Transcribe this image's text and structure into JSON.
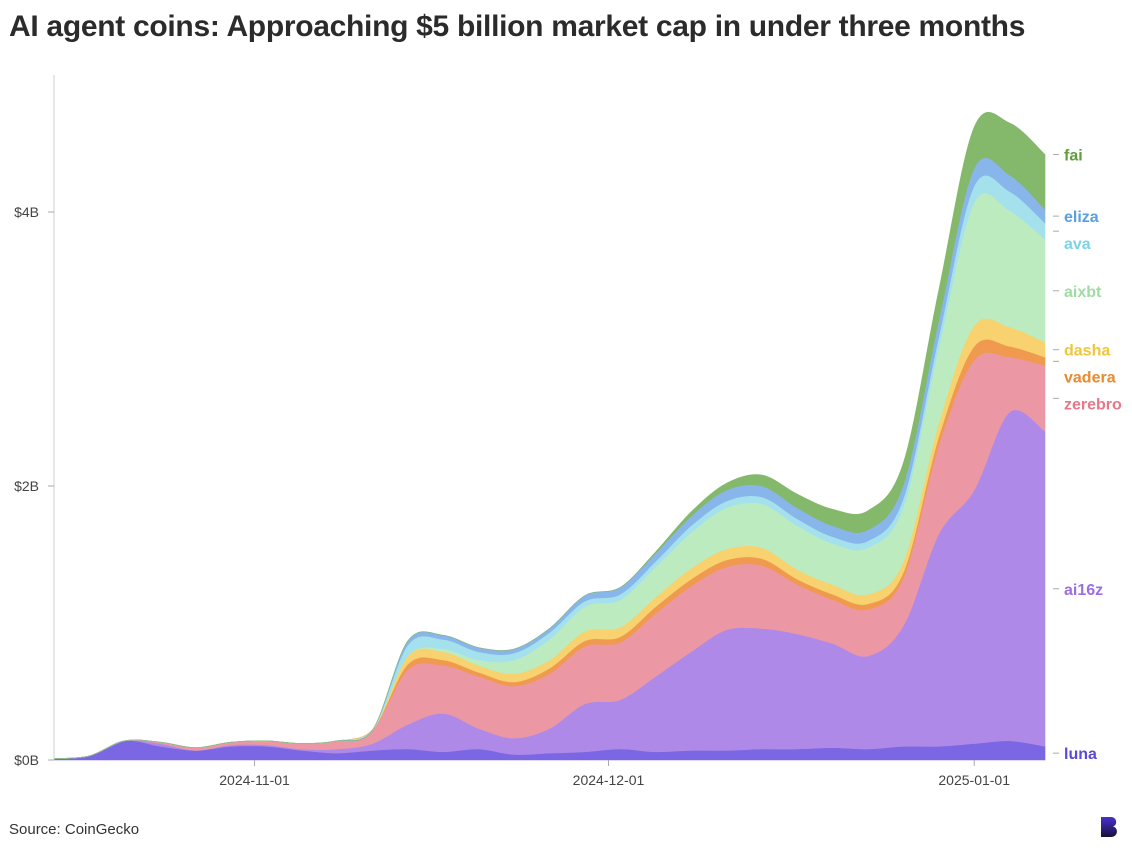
{
  "title": "AI agent coins: Approaching $5 billion market cap in under three months",
  "source": "Source: CoinGecko",
  "logo_icon": "b-logo-icon",
  "chart_data": {
    "type": "area",
    "stacked": true,
    "title": "AI agent coins: Approaching $5 billion market cap in under three months",
    "xlabel": "",
    "ylabel": "",
    "x_range": [
      "2024-10-15",
      "2025-01-07"
    ],
    "ylim": [
      0,
      5
    ],
    "y_unit": "billion USD",
    "y_ticks": [
      {
        "value": 0,
        "label": "$0B"
      },
      {
        "value": 2,
        "label": "$2B"
      },
      {
        "value": 4,
        "label": "$4B"
      }
    ],
    "x_ticks": [
      {
        "date": "2024-11-01",
        "label": "2024-11-01"
      },
      {
        "date": "2024-12-01",
        "label": "2024-12-01"
      },
      {
        "date": "2025-01-01",
        "label": "2025-01-01"
      }
    ],
    "grid": false,
    "legend": "right, inline labels",
    "dates": [
      "2024-10-15",
      "2024-10-18",
      "2024-10-21",
      "2024-10-24",
      "2024-10-27",
      "2024-10-30",
      "2024-11-02",
      "2024-11-05",
      "2024-11-08",
      "2024-11-11",
      "2024-11-14",
      "2024-11-17",
      "2024-11-20",
      "2024-11-23",
      "2024-11-26",
      "2024-11-29",
      "2024-12-02",
      "2024-12-05",
      "2024-12-08",
      "2024-12-11",
      "2024-12-14",
      "2024-12-17",
      "2024-12-20",
      "2024-12-23",
      "2024-12-26",
      "2024-12-29",
      "2025-01-01",
      "2025-01-04",
      "2025-01-07"
    ],
    "series": [
      {
        "name": "luna",
        "color": "#7b66e3",
        "values": [
          0.01,
          0.03,
          0.14,
          0.1,
          0.07,
          0.1,
          0.1,
          0.07,
          0.05,
          0.07,
          0.08,
          0.06,
          0.08,
          0.04,
          0.05,
          0.06,
          0.08,
          0.06,
          0.07,
          0.07,
          0.08,
          0.08,
          0.09,
          0.08,
          0.1,
          0.1,
          0.12,
          0.14,
          0.1
        ]
      },
      {
        "name": "ai16z",
        "color": "#ae89e8",
        "values": [
          0.0,
          0.0,
          0.0,
          0.02,
          0.0,
          0.01,
          0.01,
          0.01,
          0.03,
          0.05,
          0.18,
          0.28,
          0.15,
          0.12,
          0.18,
          0.35,
          0.36,
          0.55,
          0.72,
          0.88,
          0.88,
          0.84,
          0.76,
          0.68,
          0.88,
          1.55,
          1.85,
          2.4,
          2.3
        ]
      },
      {
        "name": "zerebro",
        "color": "#ec98a4",
        "values": [
          0.0,
          0.0,
          0.0,
          0.01,
          0.02,
          0.02,
          0.03,
          0.04,
          0.06,
          0.1,
          0.4,
          0.35,
          0.38,
          0.38,
          0.4,
          0.42,
          0.42,
          0.46,
          0.48,
          0.46,
          0.46,
          0.36,
          0.32,
          0.34,
          0.35,
          0.65,
          0.95,
          0.4,
          0.48
        ]
      },
      {
        "name": "vadera",
        "color": "#ef9a4e",
        "values": [
          0.0,
          0.0,
          0.0,
          0.0,
          0.0,
          0.0,
          0.0,
          0.0,
          0.0,
          0.0,
          0.04,
          0.04,
          0.03,
          0.03,
          0.04,
          0.04,
          0.04,
          0.05,
          0.05,
          0.05,
          0.05,
          0.04,
          0.04,
          0.04,
          0.04,
          0.06,
          0.1,
          0.08,
          0.06
        ]
      },
      {
        "name": "dasha",
        "color": "#f7d26e",
        "values": [
          0.0,
          0.0,
          0.0,
          0.0,
          0.0,
          0.0,
          0.0,
          0.0,
          0.0,
          0.0,
          0.06,
          0.06,
          0.05,
          0.06,
          0.06,
          0.07,
          0.07,
          0.07,
          0.08,
          0.08,
          0.08,
          0.07,
          0.07,
          0.07,
          0.08,
          0.1,
          0.15,
          0.14,
          0.11
        ]
      },
      {
        "name": "aixbt",
        "color": "#bcebc0",
        "values": [
          0.0,
          0.0,
          0.0,
          0.0,
          0.0,
          0.0,
          0.0,
          0.0,
          0.0,
          0.0,
          0.0,
          0.02,
          0.04,
          0.1,
          0.15,
          0.18,
          0.2,
          0.22,
          0.26,
          0.3,
          0.32,
          0.32,
          0.3,
          0.34,
          0.4,
          0.55,
          0.9,
          0.85,
          0.75
        ]
      },
      {
        "name": "ava",
        "color": "#a5e1ed",
        "values": [
          0.0,
          0.0,
          0.0,
          0.0,
          0.0,
          0.0,
          0.0,
          0.0,
          0.0,
          0.0,
          0.08,
          0.07,
          0.06,
          0.05,
          0.05,
          0.04,
          0.04,
          0.04,
          0.05,
          0.05,
          0.05,
          0.05,
          0.05,
          0.05,
          0.06,
          0.08,
          0.12,
          0.14,
          0.12
        ]
      },
      {
        "name": "eliza",
        "color": "#89b6ea",
        "values": [
          0.0,
          0.0,
          0.0,
          0.0,
          0.0,
          0.0,
          0.0,
          0.0,
          0.0,
          0.0,
          0.03,
          0.03,
          0.03,
          0.03,
          0.03,
          0.04,
          0.05,
          0.06,
          0.07,
          0.08,
          0.08,
          0.08,
          0.08,
          0.08,
          0.1,
          0.12,
          0.13,
          0.12,
          0.1
        ]
      },
      {
        "name": "fai",
        "color": "#84b86a",
        "values": [
          0.0,
          0.0,
          0.0,
          0.0,
          0.0,
          0.0,
          0.0,
          0.0,
          0.0,
          0.0,
          0.0,
          0.0,
          0.0,
          0.0,
          0.0,
          0.0,
          0.0,
          0.01,
          0.03,
          0.05,
          0.08,
          0.1,
          0.12,
          0.14,
          0.16,
          0.22,
          0.3,
          0.38,
          0.4
        ]
      }
    ],
    "labels": [
      {
        "name": "fai",
        "color": "#5f9e3e"
      },
      {
        "name": "eliza",
        "color": "#5aa0e0"
      },
      {
        "name": "ava",
        "color": "#7dd3e6"
      },
      {
        "name": "aixbt",
        "color": "#9fdca3"
      },
      {
        "name": "dasha",
        "color": "#f0c63a"
      },
      {
        "name": "vadera",
        "color": "#e88a2e"
      },
      {
        "name": "zerebro",
        "color": "#e6788a"
      },
      {
        "name": "ai16z",
        "color": "#9b6fe0"
      },
      {
        "name": "luna",
        "color": "#5b4ad8"
      }
    ]
  }
}
